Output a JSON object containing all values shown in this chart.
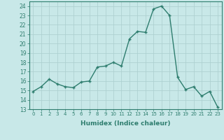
{
  "x": [
    0,
    1,
    2,
    3,
    4,
    5,
    6,
    7,
    8,
    9,
    10,
    11,
    12,
    13,
    14,
    15,
    16,
    17,
    18,
    19,
    20,
    21,
    22,
    23
  ],
  "y": [
    14.9,
    15.4,
    16.2,
    15.7,
    15.4,
    15.3,
    15.9,
    16.0,
    17.5,
    17.6,
    18.0,
    17.6,
    20.5,
    21.3,
    21.2,
    23.7,
    24.0,
    23.0,
    16.4,
    15.1,
    15.4,
    14.4,
    14.9,
    13.2
  ],
  "line_color": "#2e7d6e",
  "marker": "P",
  "marker_size": 2.5,
  "linewidth": 1.0,
  "xlabel": "Humidex (Indice chaleur)",
  "xlim": [
    -0.5,
    23.5
  ],
  "ylim": [
    13,
    24.5
  ],
  "yticks": [
    13,
    14,
    15,
    16,
    17,
    18,
    19,
    20,
    21,
    22,
    23,
    24
  ],
  "xticks": [
    0,
    1,
    2,
    3,
    4,
    5,
    6,
    7,
    8,
    9,
    10,
    11,
    12,
    13,
    14,
    15,
    16,
    17,
    18,
    19,
    20,
    21,
    22,
    23
  ],
  "xtick_labels": [
    "0",
    "1",
    "2",
    "3",
    "4",
    "5",
    "6",
    "7",
    "8",
    "9",
    "10",
    "11",
    "12",
    "13",
    "14",
    "15",
    "16",
    "17",
    "18",
    "19",
    "20",
    "21",
    "22",
    "23"
  ],
  "bg_color": "#c8e8e8",
  "grid_color": "#aacece",
  "tick_color": "#2e7d6e",
  "label_color": "#2e7d6e"
}
